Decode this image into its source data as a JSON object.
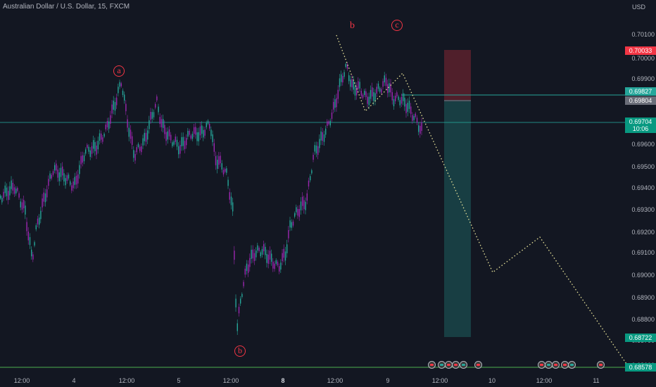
{
  "legend": {
    "symbol_text": "Australian Dollar / U.S. Dollar, 15, FXCM"
  },
  "price_axis": {
    "currency": "USD",
    "ticks": [
      "0.70100",
      "0.70000",
      "0.69900",
      "0.69700",
      "0.69600",
      "0.69500",
      "0.69400",
      "0.69300",
      "0.69200",
      "0.69100",
      "0.69000",
      "0.68900",
      "0.68800",
      "0.68700",
      "0.68600"
    ]
  },
  "badges": {
    "stop": "0.70033",
    "entry": "0.69827",
    "mid": "0.69804",
    "current_price": "0.69704",
    "countdown": "10:06",
    "target": "0.68722",
    "bottom": "0.68578"
  },
  "wave_labels": {
    "a": "a",
    "b_top": "b",
    "c": "c",
    "b_bottom": "b"
  },
  "time_axis": [
    "12:00",
    "4",
    "12:00",
    "5",
    "12:00",
    "8",
    "12:00",
    "9",
    "12:00",
    "10",
    "12:00",
    "11"
  ],
  "colors": {
    "bull": "#26a69a",
    "bear": "#9c27b0",
    "accent_red": "#f23645",
    "bg": "#131722"
  }
}
